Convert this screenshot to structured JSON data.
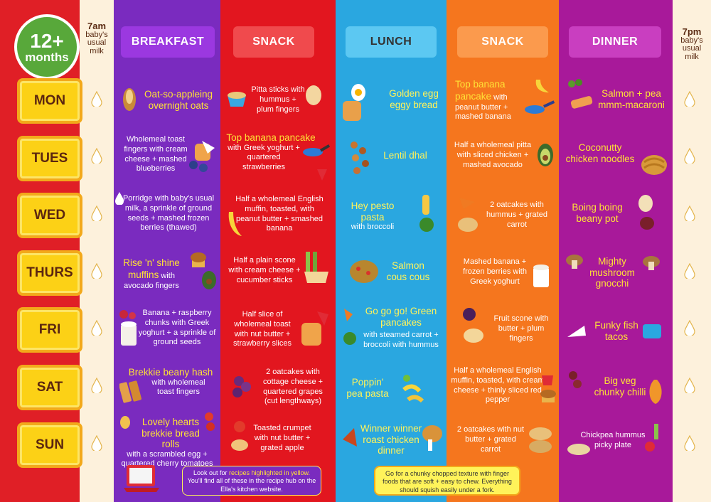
{
  "badge": {
    "line1": "12+",
    "line2": "months"
  },
  "milk_am": {
    "time": "7am",
    "label": "baby's usual milk"
  },
  "milk_pm": {
    "time": "7pm",
    "label": "baby's usual milk"
  },
  "headers": {
    "breakfast": "BREAKFAST",
    "snack1": "SNACK",
    "lunch": "LUNCH",
    "snack2": "SNACK",
    "dinner": "DINNER"
  },
  "days": [
    "MON",
    "TUES",
    "WED",
    "THURS",
    "FRI",
    "SAT",
    "SUN"
  ],
  "breakfast": [
    {
      "hl": "Oat-so-appleing overnight oats",
      "text": ""
    },
    {
      "hl": "",
      "text": "Wholemeal toast fingers with cream cheese + mashed blueberries"
    },
    {
      "hl": "",
      "text": "Porridge with baby's usual milk, a sprinkle of ground seeds + mashed frozen berries (thawed)"
    },
    {
      "hl": "Rise 'n' shine muffins",
      "text": "with avocado fingers"
    },
    {
      "hl": "",
      "text": "Banana + raspberry chunks with Greek yoghurt + a sprinkle of ground seeds"
    },
    {
      "hl": "Brekkie beany hash",
      "text": "with wholemeal toast fingers"
    },
    {
      "hl": "Lovely hearts brekkie bread rolls",
      "text": "with a scrambled egg + quartered cherry tomatoes"
    }
  ],
  "snack1": [
    {
      "hl": "",
      "text": "Pitta sticks with hummus + plum fingers"
    },
    {
      "hl": "Top banana pancake",
      "text": "with Greek yoghurt + quartered strawberries"
    },
    {
      "hl": "",
      "text": "Half a wholemeal English muffin, toasted, with peanut butter + smashed banana"
    },
    {
      "hl": "",
      "text": "Half a plain scone with cream cheese + cucumber sticks"
    },
    {
      "hl": "",
      "text": "Half slice of wholemeal toast with nut butter + strawberry slices"
    },
    {
      "hl": "",
      "text": "2 oatcakes with cottage cheese + quartered grapes (cut lengthways)"
    },
    {
      "hl": "",
      "text": "Toasted crumpet with nut butter + grated apple"
    }
  ],
  "lunch": [
    {
      "hl": "Golden egg eggy bread",
      "text": ""
    },
    {
      "hl": "Lentil dhal",
      "text": ""
    },
    {
      "hl": "Hey pesto pasta",
      "text": "with broccoli"
    },
    {
      "hl": "Salmon cous cous",
      "text": ""
    },
    {
      "hl": "Go go go! Green pancakes",
      "text": "with steamed carrot + broccoli with hummus"
    },
    {
      "hl": "Poppin' pea pasta",
      "text": ""
    },
    {
      "hl": "Winner winner roast chicken dinner",
      "text": ""
    }
  ],
  "snack2": [
    {
      "hl": "Top banana pancake",
      "text": "with peanut butter + mashed banana"
    },
    {
      "hl": "",
      "text": "Half a wholemeal pitta with sliced chicken + mashed avocado"
    },
    {
      "hl": "",
      "text": "2 oatcakes with hummus + grated carrot"
    },
    {
      "hl": "",
      "text": "Mashed banana + frozen berries with Greek yoghurt"
    },
    {
      "hl": "",
      "text": "Fruit scone with butter + plum fingers"
    },
    {
      "hl": "",
      "text": "Half a wholemeal English muffin, toasted, with cream cheese + thinly sliced red pepper"
    },
    {
      "hl": "",
      "text": "2 oatcakes with nut butter + grated carrot"
    }
  ],
  "dinner": [
    {
      "hl": "Salmon + pea mmm-macaroni",
      "text": ""
    },
    {
      "hl": "Coconutty chicken noodles",
      "text": ""
    },
    {
      "hl": "Boing boing beany pot",
      "text": ""
    },
    {
      "hl": "Mighty mushroom gnocchi",
      "text": ""
    },
    {
      "hl": "Funky fish tacos",
      "text": ""
    },
    {
      "hl": "Big veg chunky chilli",
      "text": ""
    },
    {
      "hl": "",
      "text": "Chickpea hummus picky plate"
    }
  ],
  "note_left": {
    "pre": "Look out for",
    "hl": "recipes highlighted in yellow.",
    "post": "You'll find all of these in the recipe hub on the Ella's kitchen website."
  },
  "note_right": {
    "text": "Go for a chunky chopped texture with finger foods that are soft + easy to chew. Everything should squish easily under a fork."
  },
  "colors": {
    "breakfast": "#7a2bbf",
    "snack1": "#e2161f",
    "lunch": "#2aa7e0",
    "snack2": "#f5761e",
    "dinner": "#a8199a",
    "day_button": "#fcd116",
    "highlight": "#ffe236"
  }
}
